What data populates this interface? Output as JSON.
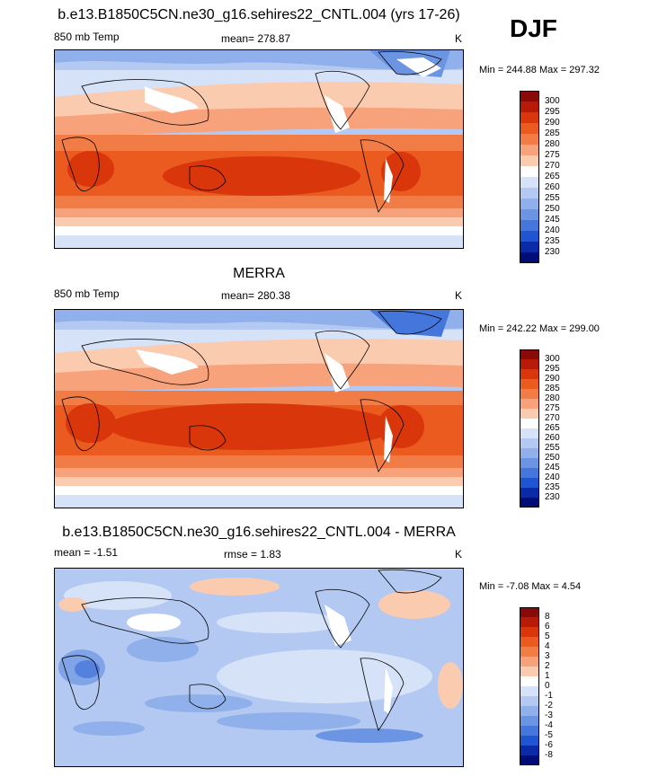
{
  "season": "DJF",
  "panels": [
    {
      "title": "b.e13.B1850C5CN.ne30_g16.sehires22_CNTL.004 (yrs 17-26)",
      "left_label": "850 mb Temp",
      "center_label": "mean= 278.87",
      "unit": "K",
      "minmax": "Min = 244.88 Max = 297.32",
      "colorbar": {
        "levels": [
          "300",
          "295",
          "290",
          "285",
          "280",
          "275",
          "270",
          "265",
          "260",
          "255",
          "250",
          "245",
          "240",
          "235",
          "230"
        ],
        "colors": [
          "#8a0a0a",
          "#b71a06",
          "#d9360c",
          "#eb5a1e",
          "#f27c45",
          "#f7a27a",
          "#fbcbb0",
          "#ffffff",
          "#d6e2f7",
          "#b3c9f2",
          "#8fb0ea",
          "#6b94e3",
          "#4476dc",
          "#2055d2",
          "#0b2aa8",
          "#000c78"
        ]
      }
    },
    {
      "title": "MERRA",
      "left_label": "850 mb Temp",
      "center_label": "mean= 280.38",
      "unit": "K",
      "minmax": "Min = 242.22 Max = 299.00",
      "colorbar": {
        "levels": [
          "300",
          "295",
          "290",
          "285",
          "280",
          "275",
          "270",
          "265",
          "260",
          "255",
          "250",
          "245",
          "240",
          "235",
          "230"
        ],
        "colors": [
          "#8a0a0a",
          "#b71a06",
          "#d9360c",
          "#eb5a1e",
          "#f27c45",
          "#f7a27a",
          "#fbcbb0",
          "#ffffff",
          "#d6e2f7",
          "#b3c9f2",
          "#8fb0ea",
          "#6b94e3",
          "#4476dc",
          "#2055d2",
          "#0b2aa8",
          "#000c78"
        ]
      }
    },
    {
      "title": "b.e13.B1850C5CN.ne30_g16.sehires22_CNTL.004 - MERRA",
      "left_label": "mean =  -1.51",
      "center_label": "rmse =   1.83",
      "unit": "K",
      "minmax": "Min =  -7.08 Max =   4.54",
      "colorbar": {
        "levels": [
          "8",
          "6",
          "5",
          "4",
          "3",
          "2",
          "1",
          "0",
          "-1",
          "-2",
          "-3",
          "-4",
          "-5",
          "-6",
          "-8"
        ],
        "colors": [
          "#8a0a0a",
          "#b71a06",
          "#d9360c",
          "#eb5a1e",
          "#f27c45",
          "#f7a27a",
          "#fbcbb0",
          "#ffffff",
          "#d6e2f7",
          "#b3c9f2",
          "#8fb0ea",
          "#6b94e3",
          "#4476dc",
          "#2055d2",
          "#0b2aa8",
          "#000c78"
        ]
      }
    }
  ]
}
